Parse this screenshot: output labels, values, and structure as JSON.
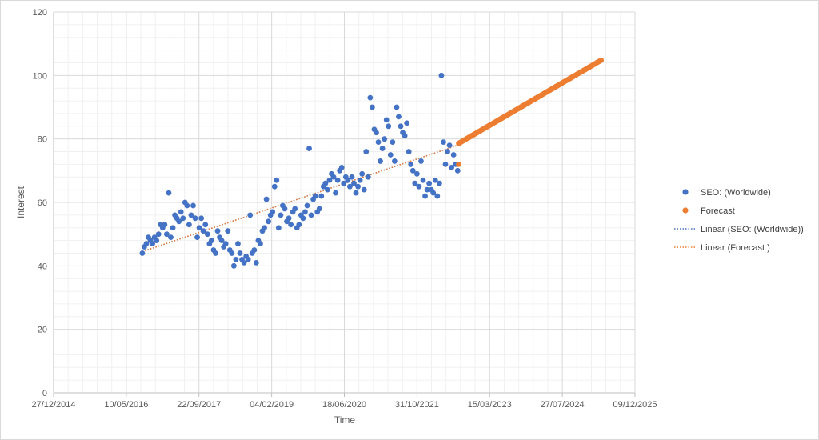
{
  "chart_data": {
    "type": "scatter",
    "xlabel": "Time",
    "ylabel": "Interest",
    "x_range": [
      "27/12/2014",
      "09/12/2025"
    ],
    "ylim": [
      0,
      120
    ],
    "x_tick_labels": [
      "27/12/2014",
      "10/05/2016",
      "22/09/2017",
      "04/02/2019",
      "18/06/2020",
      "31/10/2021",
      "15/03/2023",
      "27/07/2024",
      "09/12/2025"
    ],
    "y_ticks": [
      0,
      20,
      40,
      60,
      80,
      100,
      120
    ],
    "grid": true,
    "legend_position": "right",
    "colors": {
      "seo": "#4472c4",
      "forecast": "#ed7d31"
    },
    "series": [
      {
        "name": "SEO: (Worldwide)",
        "kind": "scatter",
        "points": [
          [
            "2016-08-28",
            44
          ],
          [
            "2016-09-11",
            46
          ],
          [
            "2016-09-25",
            47
          ],
          [
            "2016-10-09",
            49
          ],
          [
            "2016-10-23",
            48
          ],
          [
            "2016-11-06",
            47
          ],
          [
            "2016-11-20",
            49
          ],
          [
            "2016-12-04",
            48
          ],
          [
            "2016-12-18",
            50
          ],
          [
            "2017-01-01",
            53
          ],
          [
            "2017-01-15",
            52
          ],
          [
            "2017-01-29",
            53
          ],
          [
            "2017-02-12",
            50
          ],
          [
            "2017-02-26",
            63
          ],
          [
            "2017-03-12",
            49
          ],
          [
            "2017-03-26",
            52
          ],
          [
            "2017-04-09",
            56
          ],
          [
            "2017-04-23",
            55
          ],
          [
            "2017-05-07",
            54
          ],
          [
            "2017-05-21",
            57
          ],
          [
            "2017-06-04",
            55
          ],
          [
            "2017-06-18",
            60
          ],
          [
            "2017-07-02",
            59
          ],
          [
            "2017-07-16",
            53
          ],
          [
            "2017-07-30",
            56
          ],
          [
            "2017-08-13",
            59
          ],
          [
            "2017-08-27",
            55
          ],
          [
            "2017-09-10",
            49
          ],
          [
            "2017-09-24",
            52
          ],
          [
            "2017-10-08",
            55
          ],
          [
            "2017-10-22",
            51
          ],
          [
            "2017-11-05",
            53
          ],
          [
            "2017-11-19",
            50
          ],
          [
            "2017-12-03",
            47
          ],
          [
            "2017-12-17",
            48
          ],
          [
            "2017-12-31",
            45
          ],
          [
            "2018-01-14",
            44
          ],
          [
            "2018-01-28",
            51
          ],
          [
            "2018-02-11",
            49
          ],
          [
            "2018-02-25",
            48
          ],
          [
            "2018-03-11",
            46
          ],
          [
            "2018-03-25",
            47
          ],
          [
            "2018-04-08",
            51
          ],
          [
            "2018-04-22",
            45
          ],
          [
            "2018-05-06",
            44
          ],
          [
            "2018-05-20",
            40
          ],
          [
            "2018-06-03",
            42
          ],
          [
            "2018-06-17",
            47
          ],
          [
            "2018-07-01",
            44
          ],
          [
            "2018-07-15",
            42
          ],
          [
            "2018-07-29",
            41
          ],
          [
            "2018-08-12",
            43
          ],
          [
            "2018-08-26",
            42
          ],
          [
            "2018-09-09",
            56
          ],
          [
            "2018-09-23",
            44
          ],
          [
            "2018-10-07",
            45
          ],
          [
            "2018-10-21",
            41
          ],
          [
            "2018-11-04",
            48
          ],
          [
            "2018-11-18",
            47
          ],
          [
            "2018-12-02",
            51
          ],
          [
            "2018-12-16",
            52
          ],
          [
            "2018-12-30",
            61
          ],
          [
            "2019-01-13",
            54
          ],
          [
            "2019-01-27",
            56
          ],
          [
            "2019-02-10",
            57
          ],
          [
            "2019-02-24",
            65
          ],
          [
            "2019-03-10",
            67
          ],
          [
            "2019-03-24",
            52
          ],
          [
            "2019-04-07",
            56
          ],
          [
            "2019-04-21",
            59
          ],
          [
            "2019-05-05",
            58
          ],
          [
            "2019-05-19",
            54
          ],
          [
            "2019-06-02",
            55
          ],
          [
            "2019-06-16",
            53
          ],
          [
            "2019-06-30",
            57
          ],
          [
            "2019-07-14",
            58
          ],
          [
            "2019-07-28",
            52
          ],
          [
            "2019-08-11",
            53
          ],
          [
            "2019-08-25",
            56
          ],
          [
            "2019-09-08",
            55
          ],
          [
            "2019-09-22",
            57
          ],
          [
            "2019-10-06",
            59
          ],
          [
            "2019-10-20",
            77
          ],
          [
            "2019-11-03",
            56
          ],
          [
            "2019-11-17",
            61
          ],
          [
            "2019-12-01",
            62
          ],
          [
            "2019-12-15",
            57
          ],
          [
            "2019-12-29",
            58
          ],
          [
            "2020-01-12",
            62
          ],
          [
            "2020-01-26",
            65
          ],
          [
            "2020-02-09",
            66
          ],
          [
            "2020-02-23",
            64
          ],
          [
            "2020-03-08",
            67
          ],
          [
            "2020-03-22",
            69
          ],
          [
            "2020-04-05",
            68
          ],
          [
            "2020-04-19",
            63
          ],
          [
            "2020-05-03",
            67
          ],
          [
            "2020-05-17",
            70
          ],
          [
            "2020-05-31",
            71
          ],
          [
            "2020-06-14",
            66
          ],
          [
            "2020-06-28",
            68
          ],
          [
            "2020-07-12",
            67
          ],
          [
            "2020-07-26",
            65
          ],
          [
            "2020-08-09",
            68
          ],
          [
            "2020-08-23",
            66
          ],
          [
            "2020-09-06",
            63
          ],
          [
            "2020-09-20",
            65
          ],
          [
            "2020-10-04",
            67
          ],
          [
            "2020-10-18",
            69
          ],
          [
            "2020-11-01",
            64
          ],
          [
            "2020-11-15",
            76
          ],
          [
            "2020-11-29",
            68
          ],
          [
            "2020-12-13",
            93
          ],
          [
            "2020-12-27",
            90
          ],
          [
            "2021-01-10",
            83
          ],
          [
            "2021-01-24",
            82
          ],
          [
            "2021-02-07",
            79
          ],
          [
            "2021-02-21",
            73
          ],
          [
            "2021-03-07",
            77
          ],
          [
            "2021-03-21",
            80
          ],
          [
            "2021-04-04",
            86
          ],
          [
            "2021-04-18",
            84
          ],
          [
            "2021-05-02",
            75
          ],
          [
            "2021-05-16",
            79
          ],
          [
            "2021-05-30",
            73
          ],
          [
            "2021-06-13",
            90
          ],
          [
            "2021-06-27",
            87
          ],
          [
            "2021-07-11",
            84
          ],
          [
            "2021-07-25",
            82
          ],
          [
            "2021-08-08",
            81
          ],
          [
            "2021-08-22",
            85
          ],
          [
            "2021-09-05",
            76
          ],
          [
            "2021-09-19",
            72
          ],
          [
            "2021-10-03",
            70
          ],
          [
            "2021-10-17",
            66
          ],
          [
            "2021-10-31",
            69
          ],
          [
            "2021-11-14",
            65
          ],
          [
            "2021-11-28",
            73
          ],
          [
            "2021-12-12",
            67
          ],
          [
            "2021-12-26",
            62
          ],
          [
            "2022-01-09",
            64
          ],
          [
            "2022-01-23",
            66
          ],
          [
            "2022-02-06",
            64
          ],
          [
            "2022-02-20",
            63
          ],
          [
            "2022-03-06",
            67
          ],
          [
            "2022-03-20",
            62
          ],
          [
            "2022-04-03",
            66
          ],
          [
            "2022-04-17",
            100
          ],
          [
            "2022-05-01",
            79
          ],
          [
            "2022-05-15",
            72
          ],
          [
            "2022-05-29",
            76
          ],
          [
            "2022-06-12",
            78
          ],
          [
            "2022-06-26",
            71
          ],
          [
            "2022-07-10",
            75
          ],
          [
            "2022-07-24",
            72
          ],
          [
            "2022-08-07",
            70
          ]
        ]
      },
      {
        "name": "Forecast",
        "kind": "scatter",
        "start_date": "2022-08-14",
        "end_date": "2025-04-20",
        "start_value": 78.6,
        "end_value": 104.8,
        "extra_points": [
          [
            "2022-08-14",
            72
          ]
        ]
      },
      {
        "name": "Linear (SEO: (Worldwide))",
        "kind": "trendline",
        "from": [
          "2016-08-28",
          44.5
        ],
        "to": [
          "2022-08-07",
          78
        ]
      },
      {
        "name": "Linear (Forecast )",
        "kind": "trendline",
        "from": [
          "2016-08-28",
          44.5
        ],
        "to": [
          "2022-08-07",
          78
        ]
      }
    ]
  }
}
